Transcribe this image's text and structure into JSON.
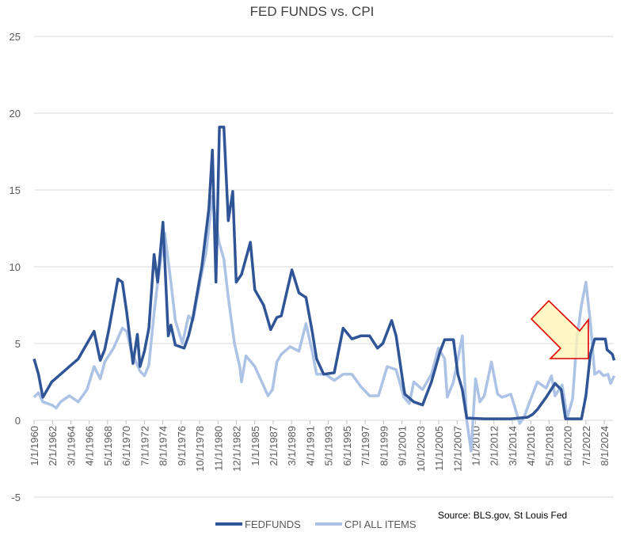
{
  "chart_data": {
    "type": "line",
    "title": "FED FUNDS vs. CPI",
    "source_note": "Source: BLS.gov, St Louis Fed",
    "ylim": [
      -5,
      25
    ],
    "y_ticks": [
      "-5",
      "0",
      "5",
      "10",
      "15",
      "20",
      "25"
    ],
    "x_tick_labels": [
      "1/1/1960",
      "2/1/1962",
      "3/1/1964",
      "4/1/1966",
      "5/1/1968",
      "6/1/1970",
      "7/1/1972",
      "8/1/1974",
      "9/1/1976",
      "10/1/1978",
      "11/1/1980",
      "12/1/1982",
      "1/1/1985",
      "2/1/1987",
      "3/1/1989",
      "4/1/1991",
      "5/1/1993",
      "6/1/1995",
      "7/1/1997",
      "8/1/1999",
      "9/1/2001",
      "10/1/2003",
      "11/1/2005",
      "12/1/2007",
      "1/1/2010",
      "2/1/2012",
      "3/1/2014",
      "4/1/2016",
      "5/1/2018",
      "6/1/2020",
      "7/1/2022",
      "8/1/2024"
    ],
    "grid": "horizontal",
    "legend": "bottom",
    "annotation": {
      "type": "block-arrow",
      "fill": "#fff6b3",
      "stroke": "#e00000",
      "points_to": "2022"
    },
    "series": [
      {
        "name": "FEDFUNDS",
        "color": "#2f5597",
        "x": [
          1960,
          1960.5,
          1961,
          1961.5,
          1962,
          1963,
          1964,
          1965,
          1966,
          1966.8,
          1967.5,
          1968,
          1968.5,
          1969.5,
          1970,
          1970.5,
          1971.2,
          1971.7,
          1972,
          1972.5,
          1973,
          1973.6,
          1974,
          1974.6,
          1975.2,
          1975.5,
          1976,
          1977,
          1977.5,
          1978,
          1979,
          1979.8,
          1980.2,
          1980.6,
          1981,
          1981.5,
          1982,
          1982.5,
          1982.9,
          1983.5,
          1984.5,
          1985,
          1986,
          1986.8,
          1987.5,
          1988,
          1989.2,
          1990,
          1990.8,
          1991.5,
          1992,
          1992.8,
          1994,
          1995,
          1996,
          1997,
          1998,
          1998.9,
          1999.5,
          2000.5,
          2001,
          2001.9,
          2002,
          2003,
          2004,
          2005,
          2006,
          2006.5,
          2007.5,
          2008,
          2008.5,
          2009,
          2011,
          2014,
          2015.9,
          2016.5,
          2017,
          2018,
          2019,
          2019.7,
          2020.2,
          2022,
          2022.5,
          2023,
          2023.5,
          2024.7,
          2024.9,
          2025.5,
          2025.7
        ],
        "y": [
          4.0,
          3.0,
          1.5,
          2.0,
          2.5,
          3.0,
          3.5,
          4.0,
          5.0,
          5.8,
          3.9,
          4.6,
          6.0,
          9.2,
          9.0,
          7.0,
          3.7,
          5.6,
          3.5,
          4.5,
          6.0,
          10.8,
          9.0,
          12.9,
          5.5,
          6.2,
          4.9,
          4.7,
          5.5,
          6.7,
          10.0,
          13.8,
          17.6,
          9.0,
          19.1,
          19.1,
          13.0,
          14.9,
          9.0,
          9.5,
          11.6,
          8.5,
          7.5,
          5.9,
          6.7,
          6.8,
          9.8,
          8.3,
          8.0,
          5.8,
          4.0,
          3.0,
          3.1,
          6.0,
          5.3,
          5.5,
          5.5,
          4.7,
          5.0,
          6.5,
          5.5,
          2.0,
          1.7,
          1.2,
          1.0,
          2.5,
          4.5,
          5.25,
          5.25,
          3.0,
          2.0,
          0.15,
          0.1,
          0.1,
          0.2,
          0.4,
          0.7,
          1.5,
          2.4,
          2.0,
          0.1,
          0.1,
          1.6,
          4.3,
          5.3,
          5.3,
          4.6,
          4.3,
          3.9
        ]
      },
      {
        "name": "CPI ALL ITEMS",
        "color": "#adc3e6",
        "x": [
          1960,
          1960.5,
          1961,
          1962,
          1962.5,
          1963,
          1964,
          1965,
          1966,
          1966.8,
          1967.5,
          1968,
          1969,
          1970,
          1970.5,
          1971,
          1972,
          1972.5,
          1973,
          1973.6,
          1974,
          1974.8,
          1975.5,
          1976,
          1976.8,
          1977.5,
          1978,
          1978.8,
          1979.5,
          1980.2,
          1980.6,
          1981,
          1981.5,
          1982,
          1982.7,
          1983.3,
          1983.5,
          1984,
          1985,
          1986.5,
          1987,
          1987.5,
          1988,
          1989,
          1990,
          1990.8,
          1991.5,
          1992,
          1993,
          1994,
          1995,
          1996,
          1997,
          1998,
          1999,
          2000,
          2001,
          2001.9,
          2002.5,
          2003,
          2004,
          2005,
          2005.8,
          2006.5,
          2006.8,
          2007.5,
          2008.5,
          2009,
          2009.5,
          2010,
          2010.5,
          2011,
          2011.8,
          2012.5,
          2013,
          2014,
          2015,
          2015.5,
          2016,
          2017,
          2018,
          2018.6,
          2019,
          2019.8,
          2020.4,
          2021,
          2021.5,
          2022,
          2022.5,
          2023,
          2023.5,
          2024,
          2024.5,
          2025,
          2025.3,
          2025.7
        ],
        "y": [
          1.5,
          1.8,
          1.2,
          1.0,
          0.8,
          1.2,
          1.6,
          1.2,
          2.0,
          3.5,
          2.7,
          3.8,
          4.7,
          6.0,
          5.8,
          4.5,
          3.2,
          2.9,
          3.6,
          7.0,
          9.0,
          12.2,
          9.0,
          6.5,
          5.0,
          6.8,
          6.5,
          9.0,
          11.0,
          14.6,
          12.9,
          11.5,
          10.5,
          8.0,
          5.0,
          3.5,
          2.5,
          4.2,
          3.5,
          1.6,
          2.0,
          3.8,
          4.3,
          4.8,
          4.5,
          6.3,
          4.5,
          3.0,
          3.0,
          2.6,
          3.0,
          3.0,
          2.2,
          1.6,
          1.6,
          3.5,
          3.3,
          1.5,
          1.1,
          2.5,
          2.0,
          3.0,
          4.7,
          4.0,
          1.5,
          2.5,
          5.5,
          0.0,
          -2.0,
          2.7,
          1.2,
          1.6,
          3.8,
          1.7,
          1.5,
          1.7,
          -0.2,
          0.2,
          1.0,
          2.5,
          2.1,
          2.9,
          1.6,
          2.3,
          0.2,
          1.4,
          5.4,
          7.5,
          9.0,
          6.4,
          3.0,
          3.2,
          2.9,
          3.0,
          2.4,
          2.9
        ]
      }
    ]
  }
}
